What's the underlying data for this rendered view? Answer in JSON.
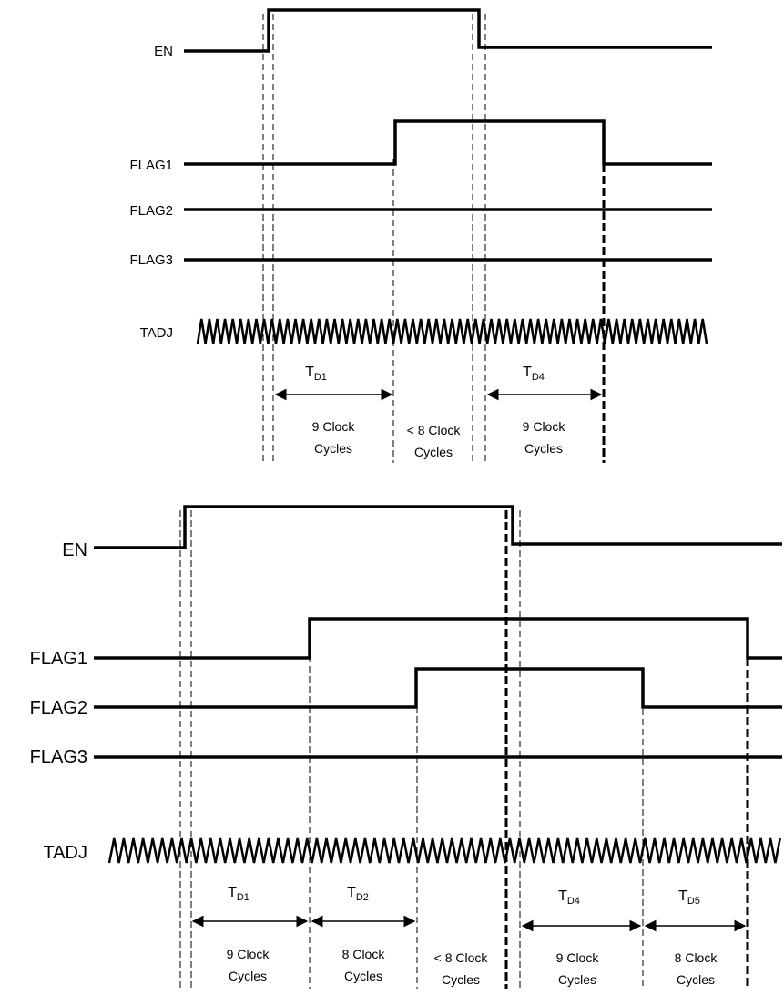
{
  "diagrams": [
    {
      "signals": [
        {
          "name": "EN"
        },
        {
          "name": "FLAG1"
        },
        {
          "name": "FLAG2"
        },
        {
          "name": "FLAG3"
        },
        {
          "name": "TADJ"
        }
      ],
      "intervals": [
        {
          "label_main": "T",
          "label_sub": "D1",
          "line1": "9 Clock",
          "line2": "Cycles"
        },
        {
          "label_main": "",
          "label_sub": "",
          "line1": "< 8 Clock",
          "line2": "Cycles"
        },
        {
          "label_main": "T",
          "label_sub": "D4",
          "line1": "9 Clock",
          "line2": "Cycles"
        }
      ]
    },
    {
      "signals": [
        {
          "name": "EN"
        },
        {
          "name": "FLAG1"
        },
        {
          "name": "FLAG2"
        },
        {
          "name": "FLAG3"
        },
        {
          "name": "TADJ"
        }
      ],
      "intervals": [
        {
          "label_main": "T",
          "label_sub": "D1",
          "line1": "9 Clock",
          "line2": "Cycles"
        },
        {
          "label_main": "T",
          "label_sub": "D2",
          "line1": "8 Clock",
          "line2": "Cycles"
        },
        {
          "label_main": "",
          "label_sub": "",
          "line1": "< 8 Clock",
          "line2": "Cycles"
        },
        {
          "label_main": "T",
          "label_sub": "D4",
          "line1": "9 Clock",
          "line2": "Cycles"
        },
        {
          "label_main": "T",
          "label_sub": "D5",
          "line1": "8 Clock",
          "line2": "Cycles"
        }
      ]
    }
  ]
}
